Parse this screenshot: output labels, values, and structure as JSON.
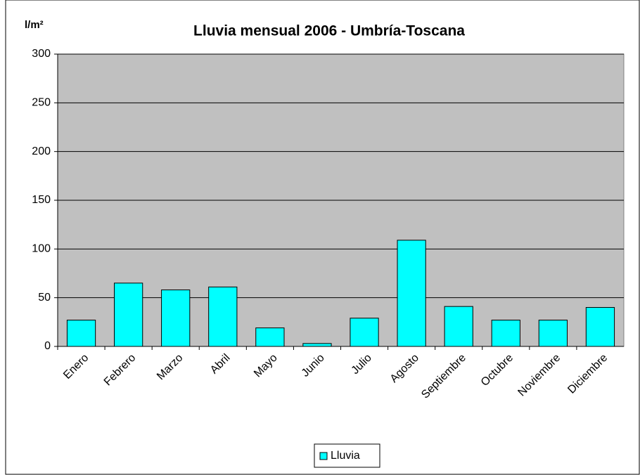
{
  "chart_data": {
    "type": "bar",
    "title": "Lluvia mensual 2006 - Umbría-Toscana",
    "y_axis_label": "l/m²",
    "categories": [
      "Enero",
      "Febrero",
      "Marzo",
      "Abril",
      "Mayo",
      "Junio",
      "Julio",
      "Agosto",
      "Septiembre",
      "Octubre",
      "Noviembre",
      "Diciembre"
    ],
    "series": [
      {
        "name": "Lluvia",
        "color": "#00ffff",
        "values": [
          27,
          65,
          58,
          61,
          19,
          3,
          29,
          109,
          41,
          27,
          27,
          40
        ]
      }
    ],
    "ylim": [
      0,
      300
    ],
    "yticks": [
      0,
      50,
      100,
      150,
      200,
      250,
      300
    ],
    "grid": true,
    "legend": "bottom"
  }
}
